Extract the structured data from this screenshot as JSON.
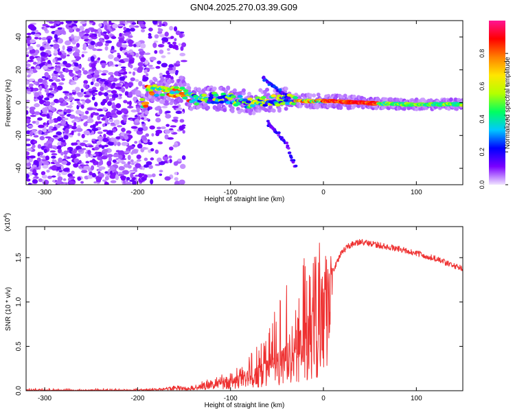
{
  "figure_title": "GN04.2025.270.03.39.G09",
  "chart_data": [
    {
      "type": "heatmap",
      "title": "GN04.2025.270.03.39.G09",
      "xlabel": "Height of straight line (km)",
      "ylabel": "Frequency (Hz)",
      "xlim": [
        -320,
        150
      ],
      "ylim": [
        -50,
        50
      ],
      "x_ticks": [
        -300,
        -200,
        -100,
        0,
        100
      ],
      "y_ticks": [
        -40,
        -20,
        0,
        20,
        40
      ],
      "colorbar": {
        "label": "Normalized spectral amplitude",
        "range": [
          0,
          1
        ],
        "ticks": [
          0.0,
          0.2,
          0.4,
          0.6,
          0.8
        ],
        "tick_labels": [
          "0.0",
          "0.2",
          "0.4",
          "0.6",
          "0.8"
        ],
        "colors": [
          "#f0e4ff",
          "#7a00ff",
          "#0000ff",
          "#00c8ff",
          "#00ff60",
          "#b4ff00",
          "#ffe600",
          "#ff8000",
          "#ff0000",
          "#ff1493"
        ]
      },
      "features": [
        {
          "name": "noise",
          "x_range": [
            -320,
            -150
          ],
          "y_range": [
            -50,
            50
          ],
          "amplitude": 0.1
        },
        {
          "name": "main-track",
          "points": [
            [
              -190,
              8
            ],
            [
              -150,
              6
            ],
            [
              -140,
              2
            ],
            [
              -120,
              3
            ],
            [
              -100,
              2
            ],
            [
              -80,
              0
            ],
            [
              -60,
              1
            ],
            [
              -40,
              2
            ],
            [
              -20,
              1
            ],
            [
              0,
              1
            ],
            [
              40,
              0
            ],
            [
              80,
              -1
            ],
            [
              150,
              -1
            ]
          ],
          "peak_amplitude": 0.9
        },
        {
          "name": "lower-branch",
          "points": [
            [
              -60,
              -12
            ],
            [
              -40,
              -25
            ],
            [
              -30,
              -40
            ]
          ],
          "amplitude": 0.15
        },
        {
          "name": "upper-branch",
          "points": [
            [
              -65,
              15
            ],
            [
              -55,
              10
            ],
            [
              -40,
              4
            ]
          ],
          "amplitude": 0.2
        }
      ]
    },
    {
      "type": "line",
      "xlabel": "Height of straight line (km)",
      "ylabel": "SNR (10 * v/v)",
      "y_exponent": "(x10",
      "y_exponent_power": "4",
      "y_exponent_close": ")",
      "xlim": [
        -320,
        150
      ],
      "ylim": [
        0,
        1.85
      ],
      "x_ticks": [
        -300,
        -200,
        -100,
        0,
        100
      ],
      "y_ticks": [
        0.0,
        0.5,
        1.0,
        1.5
      ],
      "y_tick_labels": [
        "0.0",
        "0.5",
        "1.0",
        "1.5"
      ],
      "line_color": "#ee3030",
      "series": [
        {
          "name": "SNR",
          "x": [
            -320,
            -250,
            -200,
            -170,
            -160,
            -150,
            -140,
            -130,
            -120,
            -110,
            -100,
            -90,
            -80,
            -70,
            -60,
            -50,
            -40,
            -30,
            -20,
            -10,
            0,
            10,
            20,
            30,
            40,
            50,
            60,
            70,
            80,
            90,
            100,
            110,
            120,
            130,
            140,
            150
          ],
          "y": [
            0.01,
            0.01,
            0.01,
            0.02,
            0.04,
            0.03,
            0.04,
            0.07,
            0.09,
            0.11,
            0.13,
            0.16,
            0.2,
            0.26,
            0.33,
            0.4,
            0.5,
            0.6,
            0.75,
            0.9,
            1.1,
            1.35,
            1.57,
            1.65,
            1.68,
            1.66,
            1.64,
            1.62,
            1.6,
            1.58,
            1.55,
            1.52,
            1.49,
            1.45,
            1.41,
            1.37
          ],
          "spike_amplitude": [
            0,
            0,
            0,
            0.01,
            0.03,
            0.01,
            0.02,
            0.04,
            0.05,
            0.07,
            0.09,
            0.12,
            0.2,
            0.28,
            0.38,
            0.55,
            0.7,
            0.85,
            0.8,
            0.75,
            0.6,
            0.2,
            0.06,
            0.05,
            0.05,
            0.05,
            0.05,
            0.04,
            0.04,
            0.04,
            0.04,
            0.04,
            0.04,
            0.04,
            0.04,
            0.04
          ]
        }
      ]
    }
  ]
}
